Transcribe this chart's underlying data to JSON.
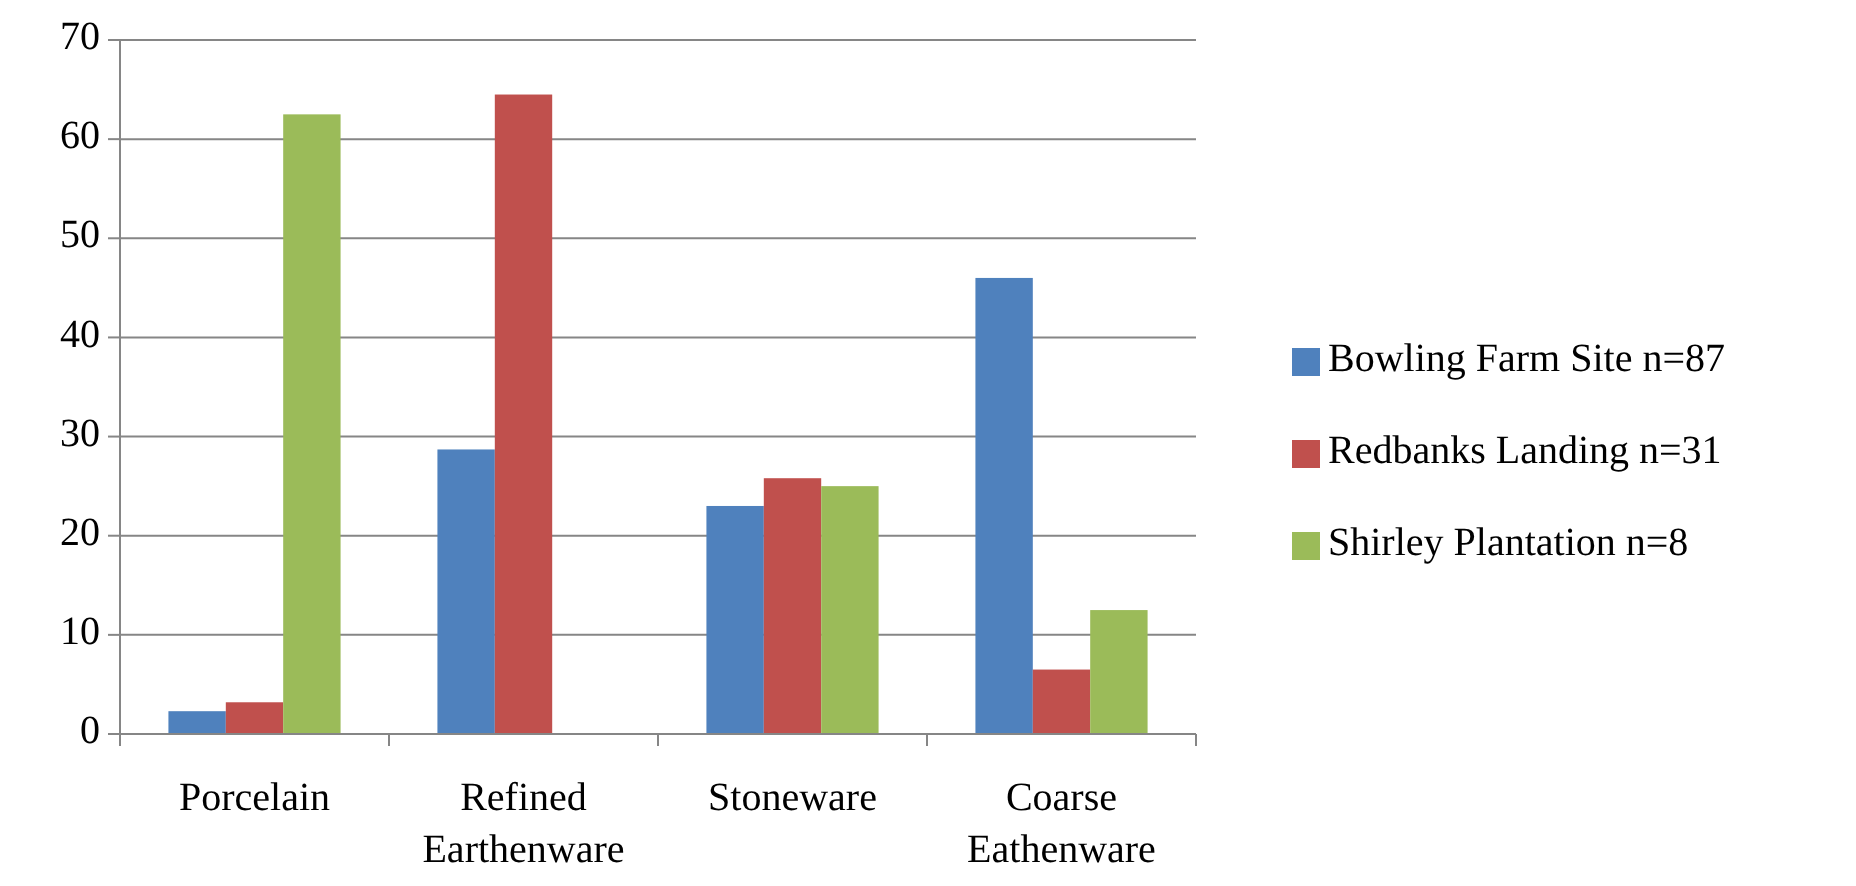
{
  "chart_data": {
    "type": "bar",
    "categories": [
      "Porcelain",
      "Refined Earthenware",
      "Stoneware",
      "Coarse Eathenware"
    ],
    "series": [
      {
        "name": "Bowling Farm Site n=87",
        "color": "#4f81bd",
        "values": [
          2.3,
          28.7,
          23,
          46
        ]
      },
      {
        "name": "Redbanks Landing n=31",
        "color": "#c0504d",
        "values": [
          3.2,
          64.5,
          25.8,
          6.5
        ]
      },
      {
        "name": "Shirley Plantation n=8",
        "color": "#9bbb59",
        "values": [
          62.5,
          0,
          25,
          12.5
        ]
      }
    ],
    "ylim": [
      0,
      70
    ],
    "yticks": [
      0,
      10,
      20,
      30,
      40,
      50,
      60,
      70
    ],
    "grid": "y",
    "legend": "right"
  }
}
